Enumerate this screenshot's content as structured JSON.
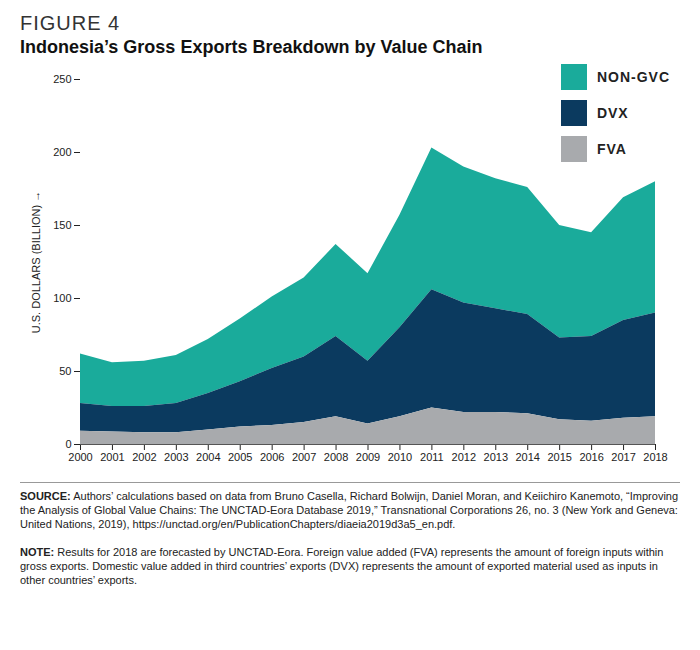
{
  "chart_data": {
    "type": "area",
    "title": "FIGURE 4",
    "subtitle": "Indonesia’s Gross Exports Breakdown by Value Chain",
    "y_label": "U.S. DOLLARS (BILLION)",
    "source": "SOURCE: Authors’ calculations based on data from Bruno Casella, Richard Bolwijn, Daniel Moran, and Keiichiro Kanemoto, “Improving the Analysis of Global Value Chains: The UNCTAD-Eora Database 2019,” Transnational Corporations 26, no. 3 (New York and Geneva: United Nations, 2019), https://unctad.org/en/PublicationChapters/diaeia2019d3a5_en.pdf.",
    "note": "NOTE: Results for 2018 are forecasted by UNCTAD-Eora. Foreign value added (FVA) represents the amount of foreign inputs within gross exports. Domestic value added in third countries’ exports (DVX) represents the amount of exported material used as inputs in other countries’ exports.",
    "stacked": true,
    "grid": false,
    "legend": "top-right",
    "x": [
      2000,
      2001,
      2002,
      2003,
      2004,
      2005,
      2006,
      2007,
      2008,
      2009,
      2010,
      2011,
      2012,
      2013,
      2014,
      2015,
      2016,
      2017,
      2018
    ],
    "xlim": [
      2000,
      2018
    ],
    "xticks": [
      2000,
      2001,
      2002,
      2003,
      2004,
      2005,
      2006,
      2007,
      2008,
      2009,
      2010,
      2011,
      2012,
      2013,
      2014,
      2015,
      2016,
      2017,
      2018
    ],
    "ylim": [
      0,
      250
    ],
    "yticks": [
      0,
      50,
      100,
      150,
      200,
      250
    ],
    "series": [
      {
        "name": "NON-GVC",
        "color": "#1aab9b",
        "values": [
          34,
          30,
          31,
          33,
          37,
          43,
          49,
          54,
          63,
          60,
          77,
          97,
          93,
          89,
          87,
          77,
          71,
          84,
          90
        ]
      },
      {
        "name": "DVX",
        "color": "#0b3a5f",
        "values": [
          19,
          17.5,
          18,
          20,
          25,
          31,
          39,
          45,
          55,
          43,
          61,
          81,
          75,
          71,
          68,
          56,
          58,
          67,
          71
        ]
      },
      {
        "name": "FVA",
        "color": "#a8aaad",
        "values": [
          9,
          8.5,
          8,
          8,
          10,
          12,
          13,
          15,
          19,
          14,
          19,
          25,
          22,
          22,
          21,
          17,
          16,
          18,
          19
        ]
      }
    ]
  }
}
